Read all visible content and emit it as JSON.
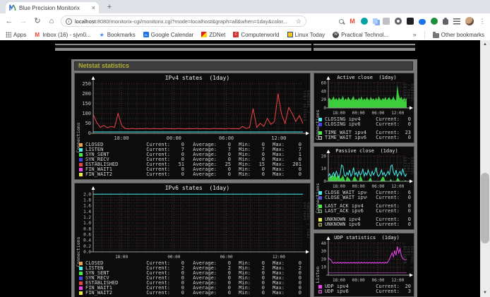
{
  "browser": {
    "tab_title": "Blue Precision Monitorix",
    "url_host": "localhost",
    "url_rest": ":8080/monitorix-cgi/monitorix.cgi?mode=localhost&graph=all&when=1day&color...",
    "bookmarks_apps": "Apps",
    "bookmarks": [
      {
        "label": "Inbox (16) - sjvn0...",
        "icon": "gmail-icon"
      },
      {
        "label": "Bookmarks",
        "icon": "star-icon"
      },
      {
        "label": "Google Calendar",
        "icon": "calendar-icon"
      },
      {
        "label": "ZDNet",
        "icon": "zdnet-icon"
      },
      {
        "label": "Computerworld",
        "icon": "computerworld-icon"
      },
      {
        "label": "Linux Today",
        "icon": "linuxtoday-icon"
      },
      {
        "label": "Practical Technol...",
        "icon": "wordpress-icon"
      }
    ],
    "other_bookmarks": "Other bookmarks"
  },
  "page": {
    "section_title": "Netstat statistics",
    "watermark": "RRDTOOL / TOBI OETIKER",
    "legend_labels": {
      "current": "Current:",
      "average": "Average:",
      "min": "Min:",
      "max": "Max:"
    }
  },
  "chart_data": [
    {
      "id": "ipv4_states",
      "type": "line",
      "title": "IPv4 states  (1day)",
      "ylabel": "Connections",
      "ylim": [
        0,
        250
      ],
      "yticks": [
        0,
        50,
        100,
        150,
        200,
        250
      ],
      "ytick_labels": [
        "0",
        "50",
        "100",
        "150",
        "200",
        "250"
      ],
      "xticks": [
        "18:00",
        "00:00",
        "06:00",
        "12:00"
      ],
      "xtick_pos": [
        0.135,
        0.385,
        0.635,
        0.885
      ],
      "grid": true,
      "legend_position": "bottom",
      "series": [
        {
          "name": "ESTABLISHED",
          "color": "#ee4444",
          "fill": false,
          "values": [
            95,
            55,
            30,
            40,
            28,
            35,
            30,
            100,
            40,
            24,
            22,
            25,
            22,
            24,
            23,
            25,
            22,
            24,
            23,
            22,
            25,
            23,
            24,
            22,
            25,
            23,
            22,
            24,
            23,
            25,
            22,
            24,
            23,
            22,
            25,
            23,
            24,
            22,
            25,
            23,
            24,
            22,
            35,
            25,
            30,
            125,
            30,
            50,
            35,
            75,
            45,
            60,
            200,
            95,
            50,
            130,
            100,
            60,
            90,
            50
          ]
        },
        {
          "name": "LISTEN",
          "color": "#44eeee",
          "fill": false,
          "values": [
            7,
            7
          ]
        }
      ],
      "legend": [
        {
          "name": "CLOSED",
          "color": "#eea044",
          "current": 0,
          "average": 0,
          "min": 0,
          "max": 0
        },
        {
          "name": "LISTEN",
          "color": "#44eeee",
          "current": 7,
          "average": 7,
          "min": 7,
          "max": 7
        },
        {
          "name": "SYN_SENT",
          "color": "#44ee44",
          "current": 0,
          "average": 0,
          "min": 0,
          "max": 1
        },
        {
          "name": "SYN_RECV",
          "color": "#4444ee",
          "current": 0,
          "average": 0,
          "min": 0,
          "max": 0
        },
        {
          "name": "ESTABLISHED",
          "color": "#ee4444",
          "current": 51,
          "average": 25,
          "min": 15,
          "max": 201
        },
        {
          "name": "FIN_WAIT1",
          "color": "#ee44ee",
          "current": 0,
          "average": 0,
          "min": 0,
          "max": 0
        },
        {
          "name": "FIN_WAIT2",
          "color": "#eeee44",
          "current": 0,
          "average": 0,
          "min": 0,
          "max": 0
        }
      ]
    },
    {
      "id": "ipv6_states",
      "type": "line",
      "title": "IPv6 states  (1day)",
      "ylabel": "Connections",
      "ylim": [
        0,
        2.0
      ],
      "yticks": [
        0,
        0.2,
        0.4,
        0.6,
        0.8,
        1.0,
        1.2,
        1.4,
        1.6,
        1.8,
        2.0
      ],
      "ytick_labels": [
        "0.0",
        "0.2",
        "0.4",
        "0.6",
        "0.8",
        "1.0",
        "1.2",
        "1.4",
        "1.6",
        "1.8",
        "2.0"
      ],
      "xticks": [
        "18:00",
        "00:00",
        "06:00",
        "12:00"
      ],
      "xtick_pos": [
        0.135,
        0.385,
        0.635,
        0.885
      ],
      "grid": true,
      "legend_position": "bottom",
      "series": [
        {
          "name": "LISTEN",
          "color": "#44eeee",
          "fill": false,
          "values": [
            2,
            2
          ]
        }
      ],
      "legend": [
        {
          "name": "CLOSED",
          "color": "#eea044",
          "current": 0,
          "average": 0,
          "min": 0,
          "max": 0
        },
        {
          "name": "LISTEN",
          "color": "#44eeee",
          "current": 2,
          "average": 2,
          "min": 2,
          "max": 2
        },
        {
          "name": "SYN_SENT",
          "color": "#44ee44",
          "current": 0,
          "average": 0,
          "min": 0,
          "max": 0
        },
        {
          "name": "SYN_RECV",
          "color": "#4444ee",
          "current": 0,
          "average": 0,
          "min": 0,
          "max": 0
        },
        {
          "name": "ESTABLISHED",
          "color": "#ee4444",
          "current": 0,
          "average": 0,
          "min": 0,
          "max": 0
        },
        {
          "name": "FIN_WAIT1",
          "color": "#ee44ee",
          "current": 0,
          "average": 0,
          "min": 0,
          "max": 0
        },
        {
          "name": "FIN_WAIT2",
          "color": "#eeee44",
          "current": 0,
          "average": 0,
          "min": 0,
          "max": 0
        }
      ]
    },
    {
      "id": "active_close",
      "type": "area",
      "title": "Active close  (1day)",
      "ylabel": "Connections",
      "ylim": [
        0,
        60
      ],
      "yticks": [
        0,
        20,
        40,
        60
      ],
      "ytick_labels": [
        "0",
        "20",
        "40",
        "60"
      ],
      "xticks": [
        "18:00",
        "00:00",
        "06:00",
        "12:00"
      ],
      "xtick_pos": [
        0.135,
        0.385,
        0.635,
        0.885
      ],
      "grid": true,
      "legend_position": "bottom",
      "series": [
        {
          "name": "TIME_WAIT ipv4",
          "color": "#44ee44",
          "fill": true,
          "values": [
            20,
            25,
            18,
            22,
            28,
            19,
            24,
            18,
            26,
            20,
            22,
            29,
            18,
            23,
            19,
            27,
            21,
            18,
            24,
            28,
            19,
            22,
            18,
            25,
            20,
            28,
            18,
            23,
            19,
            26,
            21,
            18,
            27,
            20,
            23,
            18,
            25,
            19,
            28,
            21,
            18,
            24,
            20,
            27,
            18,
            23,
            26,
            19,
            21,
            28,
            20,
            18,
            55,
            32,
            22,
            27,
            19,
            24,
            21,
            23
          ]
        }
      ],
      "legend": [
        {
          "name": "CLOSING ipv4",
          "color": "#44eeee",
          "current": 0
        },
        {
          "name": "CLOSING ipv6",
          "color": "#4444ee",
          "current": 0
        },
        {
          "name": "TIME_WAIT ipv4",
          "color": "#44ee44",
          "current": 23,
          "gap": true
        },
        {
          "name": "TIME_WAIT ipv6",
          "color": "#2a2a2a",
          "border": "#cccccc",
          "current": 0
        }
      ]
    },
    {
      "id": "passive_close",
      "type": "area",
      "title": "Passive close  (1day)",
      "ylabel": "Connections",
      "ylim": [
        0,
        20
      ],
      "yticks": [
        0,
        10,
        20
      ],
      "ytick_labels": [
        "0",
        "10",
        "20"
      ],
      "xticks": [
        "18:00",
        "00:00",
        "06:00",
        "12:00"
      ],
      "xtick_pos": [
        0.135,
        0.385,
        0.635,
        0.885
      ],
      "grid": true,
      "legend_position": "bottom",
      "series": [
        {
          "name": "LAST_ACK ipv4",
          "color": "#44ee44",
          "fill": true,
          "values": [
            2,
            4,
            3,
            5,
            4,
            6,
            3,
            5,
            4,
            2,
            3,
            5,
            2,
            0,
            4,
            3,
            2,
            0,
            0,
            3,
            4,
            2,
            0,
            0,
            5,
            3,
            0,
            0,
            0,
            0,
            0,
            2,
            3,
            0,
            0,
            0,
            0,
            0,
            0,
            0,
            2,
            4,
            3,
            0,
            0,
            0,
            0,
            2,
            0,
            0,
            0,
            0,
            3,
            2,
            0,
            0,
            0,
            0,
            1,
            0
          ]
        },
        {
          "name": "CLOSE_WAIT ipv4",
          "color": "#44eeee",
          "fill": false,
          "values": [
            4,
            6,
            3,
            5,
            7,
            4,
            8,
            5,
            3,
            6,
            13,
            12,
            5,
            4,
            7,
            5,
            9,
            4,
            6,
            11,
            5,
            7,
            4,
            8,
            5,
            6,
            10,
            4,
            7,
            5,
            9,
            6,
            4,
            8,
            5,
            7,
            11,
            5,
            4,
            6,
            9,
            5,
            7,
            4,
            6,
            8,
            5,
            12,
            13,
            7,
            5,
            9,
            4,
            6,
            8,
            5,
            10,
            6,
            4,
            6
          ]
        }
      ],
      "legend": [
        {
          "name": "CLOSE_WAIT ipv4",
          "color": "#44eeee",
          "current": 6
        },
        {
          "name": "CLOSE_WAIT ipv6",
          "color": "#5555dd",
          "current": 0
        },
        {
          "name": "LAST_ACK ipv4",
          "color": "#44ee44",
          "current": 0,
          "gap": true
        },
        {
          "name": "LAST_ACK ipv6",
          "color": "#224422",
          "border": "#88aa88",
          "current": 0
        },
        {
          "name": "UNKNOWN ipv4",
          "color": "#eeee44",
          "current": 0,
          "gap": true
        },
        {
          "name": "UNKNOWN ipv6",
          "color": "#444422",
          "border": "#aaaa66",
          "current": 0
        }
      ]
    },
    {
      "id": "udp_statistics",
      "type": "line",
      "title": "UDP statistics  (1day)",
      "ylabel": "Listen",
      "ylim": [
        0,
        40
      ],
      "yticks": [
        10,
        20,
        30,
        40
      ],
      "ytick_labels": [
        "10",
        "20",
        "30",
        "40"
      ],
      "xticks": [
        "18:00",
        "00:00",
        "06:00",
        "12:00"
      ],
      "xtick_pos": [
        0.135,
        0.385,
        0.635,
        0.885
      ],
      "grid": true,
      "legend_position": "bottom",
      "series": [
        {
          "name": "UDP ipv4",
          "color": "#ee44ee",
          "fill": false,
          "values": [
            22,
            20,
            19,
            16,
            15,
            16,
            15,
            16,
            15,
            16,
            15,
            16,
            15,
            16,
            15,
            16,
            15,
            16,
            15,
            16,
            15,
            16,
            15,
            16,
            15,
            16,
            15,
            16,
            15,
            16,
            15,
            16,
            15,
            16,
            15,
            16,
            15,
            16,
            15,
            16,
            15,
            16,
            15,
            16,
            15,
            17,
            20,
            24,
            28,
            23,
            31,
            25,
            36,
            28,
            33,
            24,
            21,
            20,
            19,
            20
          ]
        },
        {
          "name": "UDP ipv6",
          "color": "#883388",
          "fill": false,
          "values": [
            3,
            3
          ]
        }
      ],
      "legend": [
        {
          "name": "UDP ipv4",
          "color": "#ee44ee",
          "current": 20
        },
        {
          "name": "UDP ipv6",
          "color": "#552255",
          "border": "#bb66bb",
          "current": 3
        }
      ]
    }
  ]
}
